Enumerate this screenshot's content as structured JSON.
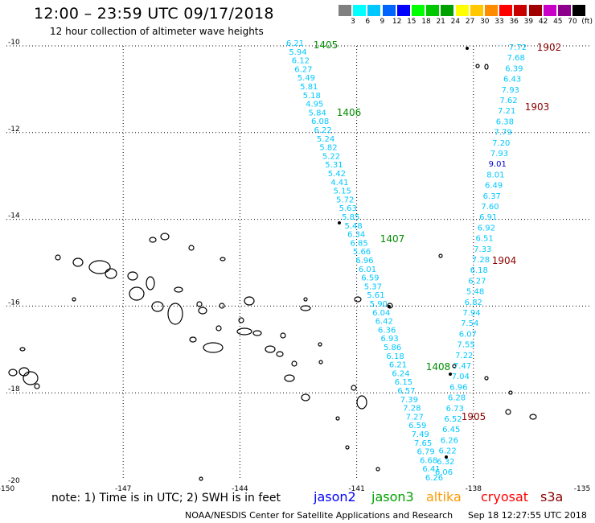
{
  "header": {
    "title": "12:00 – 23:59 UTC 09/17/2018",
    "subtitle": "12 hour collection of altimeter wave heights"
  },
  "colorbar": {
    "colors": [
      "#808080",
      "#00ffff",
      "#00c8ff",
      "#0064ff",
      "#0000ff",
      "#00ff00",
      "#00c800",
      "#00a000",
      "#ffff00",
      "#ffc800",
      "#ff8c00",
      "#ff0000",
      "#c80000",
      "#a00000",
      "#c800c8",
      "#8c008c",
      "#000000"
    ],
    "labels": [
      "3",
      "6",
      "9",
      "12",
      "15",
      "18",
      "21",
      "24",
      "27",
      "30",
      "33",
      "36",
      "39",
      "42",
      "45",
      "70",
      "(ft)"
    ]
  },
  "map": {
    "lat_ticks": [
      "-10",
      "-12",
      "-14",
      "-16",
      "-18",
      "-20"
    ],
    "lon_ticks": [
      "-150",
      "-147",
      "-144",
      "-141",
      "-138",
      "-135"
    ]
  },
  "passes": {
    "a": {
      "label_color": "#00c8ff",
      "values": [
        "6.21",
        "5.94",
        "6.12",
        "6.27",
        "5.49",
        "5.81",
        "5.18",
        "4.95",
        "5.84",
        "6.08",
        "6.22",
        "5.24",
        "5.82",
        "5.22",
        "5.31",
        "5.42",
        "4.41",
        "5.15",
        "5.72",
        "5.63",
        "5.85",
        "5.48",
        "6.34",
        "6.85",
        "5.66",
        "6.96",
        "6.01",
        "6.59",
        "5.37",
        "5.61",
        "5.90",
        "6.04",
        "6.42",
        "6.36",
        "6.93",
        "5.86",
        "6.18",
        "6.21",
        "6.24",
        "6.15",
        "6.57",
        "7.39",
        "7.28",
        "7.27",
        "6.59",
        "7.49",
        "7.65",
        "6.79",
        "6.68",
        "6.41",
        "6.26"
      ]
    },
    "b": {
      "label_color": "#00c8ff",
      "values": [
        "7.72",
        "7.68",
        "6.39",
        "6.43",
        "7.93",
        "7.62",
        "7.21",
        "6.38",
        "7.79",
        "7.20",
        "7.93",
        "9.01",
        "8.01",
        "6.49",
        "6.37",
        "7.60",
        "6.91",
        "6.92",
        "6.51",
        "7.33",
        "7.28",
        "6.18",
        "6.27",
        "5.48",
        "6.82",
        "7.94",
        "7.54",
        "6.07",
        "7.55",
        "7.22",
        "7.47",
        "7.04",
        "6.96",
        "6.28",
        "6.73",
        "6.52",
        "6.45",
        "6.26",
        "6.22",
        "6.32",
        "6.06"
      ]
    },
    "special_value_color": "#0000c8",
    "special_value_index": 11
  },
  "pass_labels": [
    {
      "text": "1405",
      "color": "#008c00"
    },
    {
      "text": "1406",
      "color": "#008c00"
    },
    {
      "text": "1407",
      "color": "#008c00"
    },
    {
      "text": "1408",
      "color": "#008c00"
    },
    {
      "text": "1902",
      "color": "#8b0000"
    },
    {
      "text": "1903",
      "color": "#8b0000"
    },
    {
      "text": "1904",
      "color": "#8b0000"
    },
    {
      "text": "1905",
      "color": "#8b0000"
    }
  ],
  "footer": {
    "note": "note: 1) Time is in UTC; 2) SWH is in feet",
    "satellites": [
      {
        "name": "jason2",
        "color": "#0000ff"
      },
      {
        "name": "jason3",
        "color": "#00a000"
      },
      {
        "name": "altika",
        "color": "#ff9900"
      },
      {
        "name": "cryosat",
        "color": "#ff0000"
      },
      {
        "name": "s3a",
        "color": "#8b0000"
      }
    ],
    "credit": "NOAA/NESDIS Center for Satellite Applications and Research",
    "timestamp": "Sep 18 12:27:55 UTC 2018"
  }
}
